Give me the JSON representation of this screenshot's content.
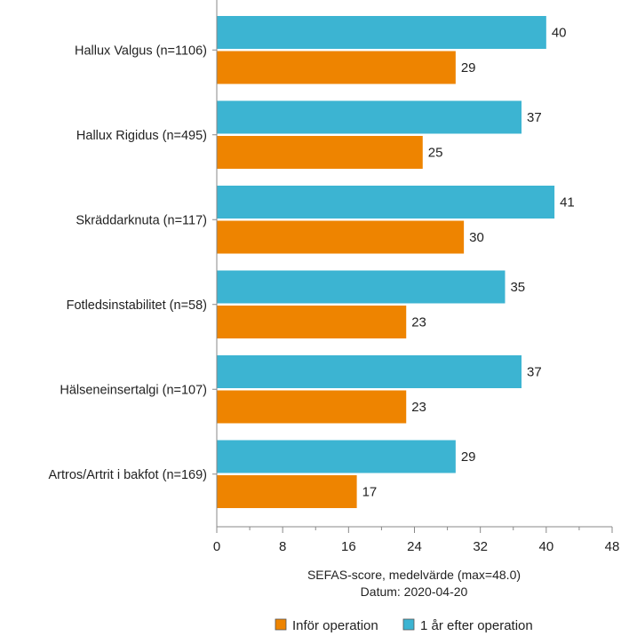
{
  "chart_data": {
    "type": "bar",
    "orientation": "horizontal",
    "categories": [
      "Hallux Valgus (n=1106)",
      "Hallux Rigidus (n=495)",
      "Skräddarknuta (n=117)",
      "Fotledsinstabilitet (n=58)",
      "Hälseneinsertalgi (n=107)",
      "Artros/Artrit i bakfot (n=169)"
    ],
    "series": [
      {
        "name": "1 år efter operation",
        "color": "#3cb4d2",
        "values": [
          40,
          37,
          41,
          35,
          37,
          29
        ],
        "labels": [
          "40",
          "37",
          "41",
          "35",
          "37",
          "29"
        ]
      },
      {
        "name": "Inför operation",
        "color": "#ee8400",
        "values": [
          29,
          25,
          30,
          23,
          23,
          17
        ],
        "labels": [
          "29",
          "25",
          "30",
          "23",
          "23",
          "17"
        ]
      }
    ],
    "xlabel": "SEFAS-score, medelvärde (max=48.0)",
    "subtitle": "Datum: 2020-04-20",
    "xlim": [
      0,
      48
    ],
    "xticks": [
      "0",
      "8",
      "16",
      "24",
      "32",
      "40",
      "48"
    ],
    "grid": false,
    "legend_position": "bottom",
    "legend_order": [
      1,
      0
    ]
  }
}
